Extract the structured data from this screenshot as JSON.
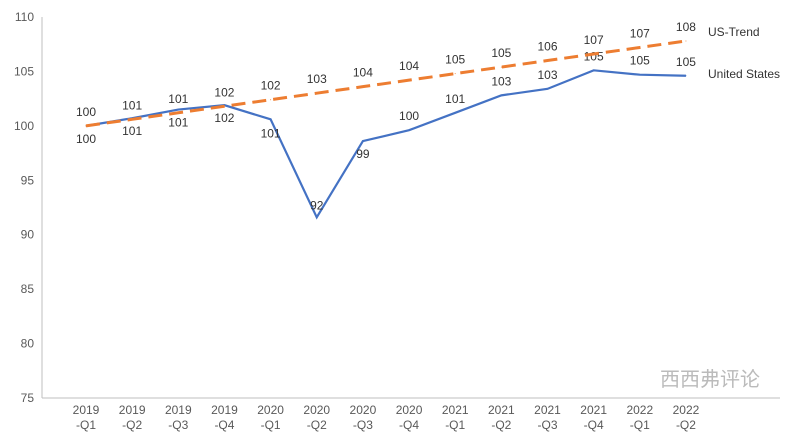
{
  "chart_data": {
    "type": "line",
    "title": "",
    "xlabel": "",
    "ylabel": "",
    "ylim": [
      75,
      110
    ],
    "yticks": [
      75,
      80,
      85,
      90,
      95,
      100,
      105,
      110
    ],
    "categories": [
      [
        "2019",
        "-Q1"
      ],
      [
        "2019",
        "-Q2"
      ],
      [
        "2019",
        "-Q3"
      ],
      [
        "2019",
        "-Q4"
      ],
      [
        "2020",
        "-Q1"
      ],
      [
        "2020",
        "-Q2"
      ],
      [
        "2020",
        "-Q3"
      ],
      [
        "2020",
        "-Q4"
      ],
      [
        "2021",
        "-Q1"
      ],
      [
        "2021",
        "-Q2"
      ],
      [
        "2021",
        "-Q3"
      ],
      [
        "2021",
        "-Q4"
      ],
      [
        "2022",
        "-Q1"
      ],
      [
        "2022",
        "-Q2"
      ]
    ],
    "grid": false,
    "series": [
      {
        "name": "United States",
        "color": "#4472C4",
        "dashed": false,
        "values": [
          100,
          100.7,
          101.5,
          101.9,
          100.6,
          91.6,
          98.6,
          99.6,
          101.2,
          102.8,
          103.4,
          105.1,
          104.7,
          104.6
        ],
        "labels": [
          "100",
          "101",
          "101",
          "102",
          "101",
          "92",
          "99",
          "100",
          "101",
          "103",
          "103",
          "105",
          "105",
          "105"
        ]
      },
      {
        "name": "US-Trend",
        "color": "#ED7D31",
        "dashed": true,
        "values": [
          100,
          100.6,
          101.2,
          101.8,
          102.4,
          103.0,
          103.6,
          104.2,
          104.8,
          105.4,
          106.0,
          106.6,
          107.2,
          107.8
        ],
        "labels": [
          "100",
          "101",
          "101",
          "102",
          "102",
          "103",
          "104",
          "104",
          "105",
          "105",
          "106",
          "107",
          "107",
          "108"
        ]
      }
    ],
    "legend": "right (end-of-line labels)"
  },
  "watermark": "西西弗评论"
}
